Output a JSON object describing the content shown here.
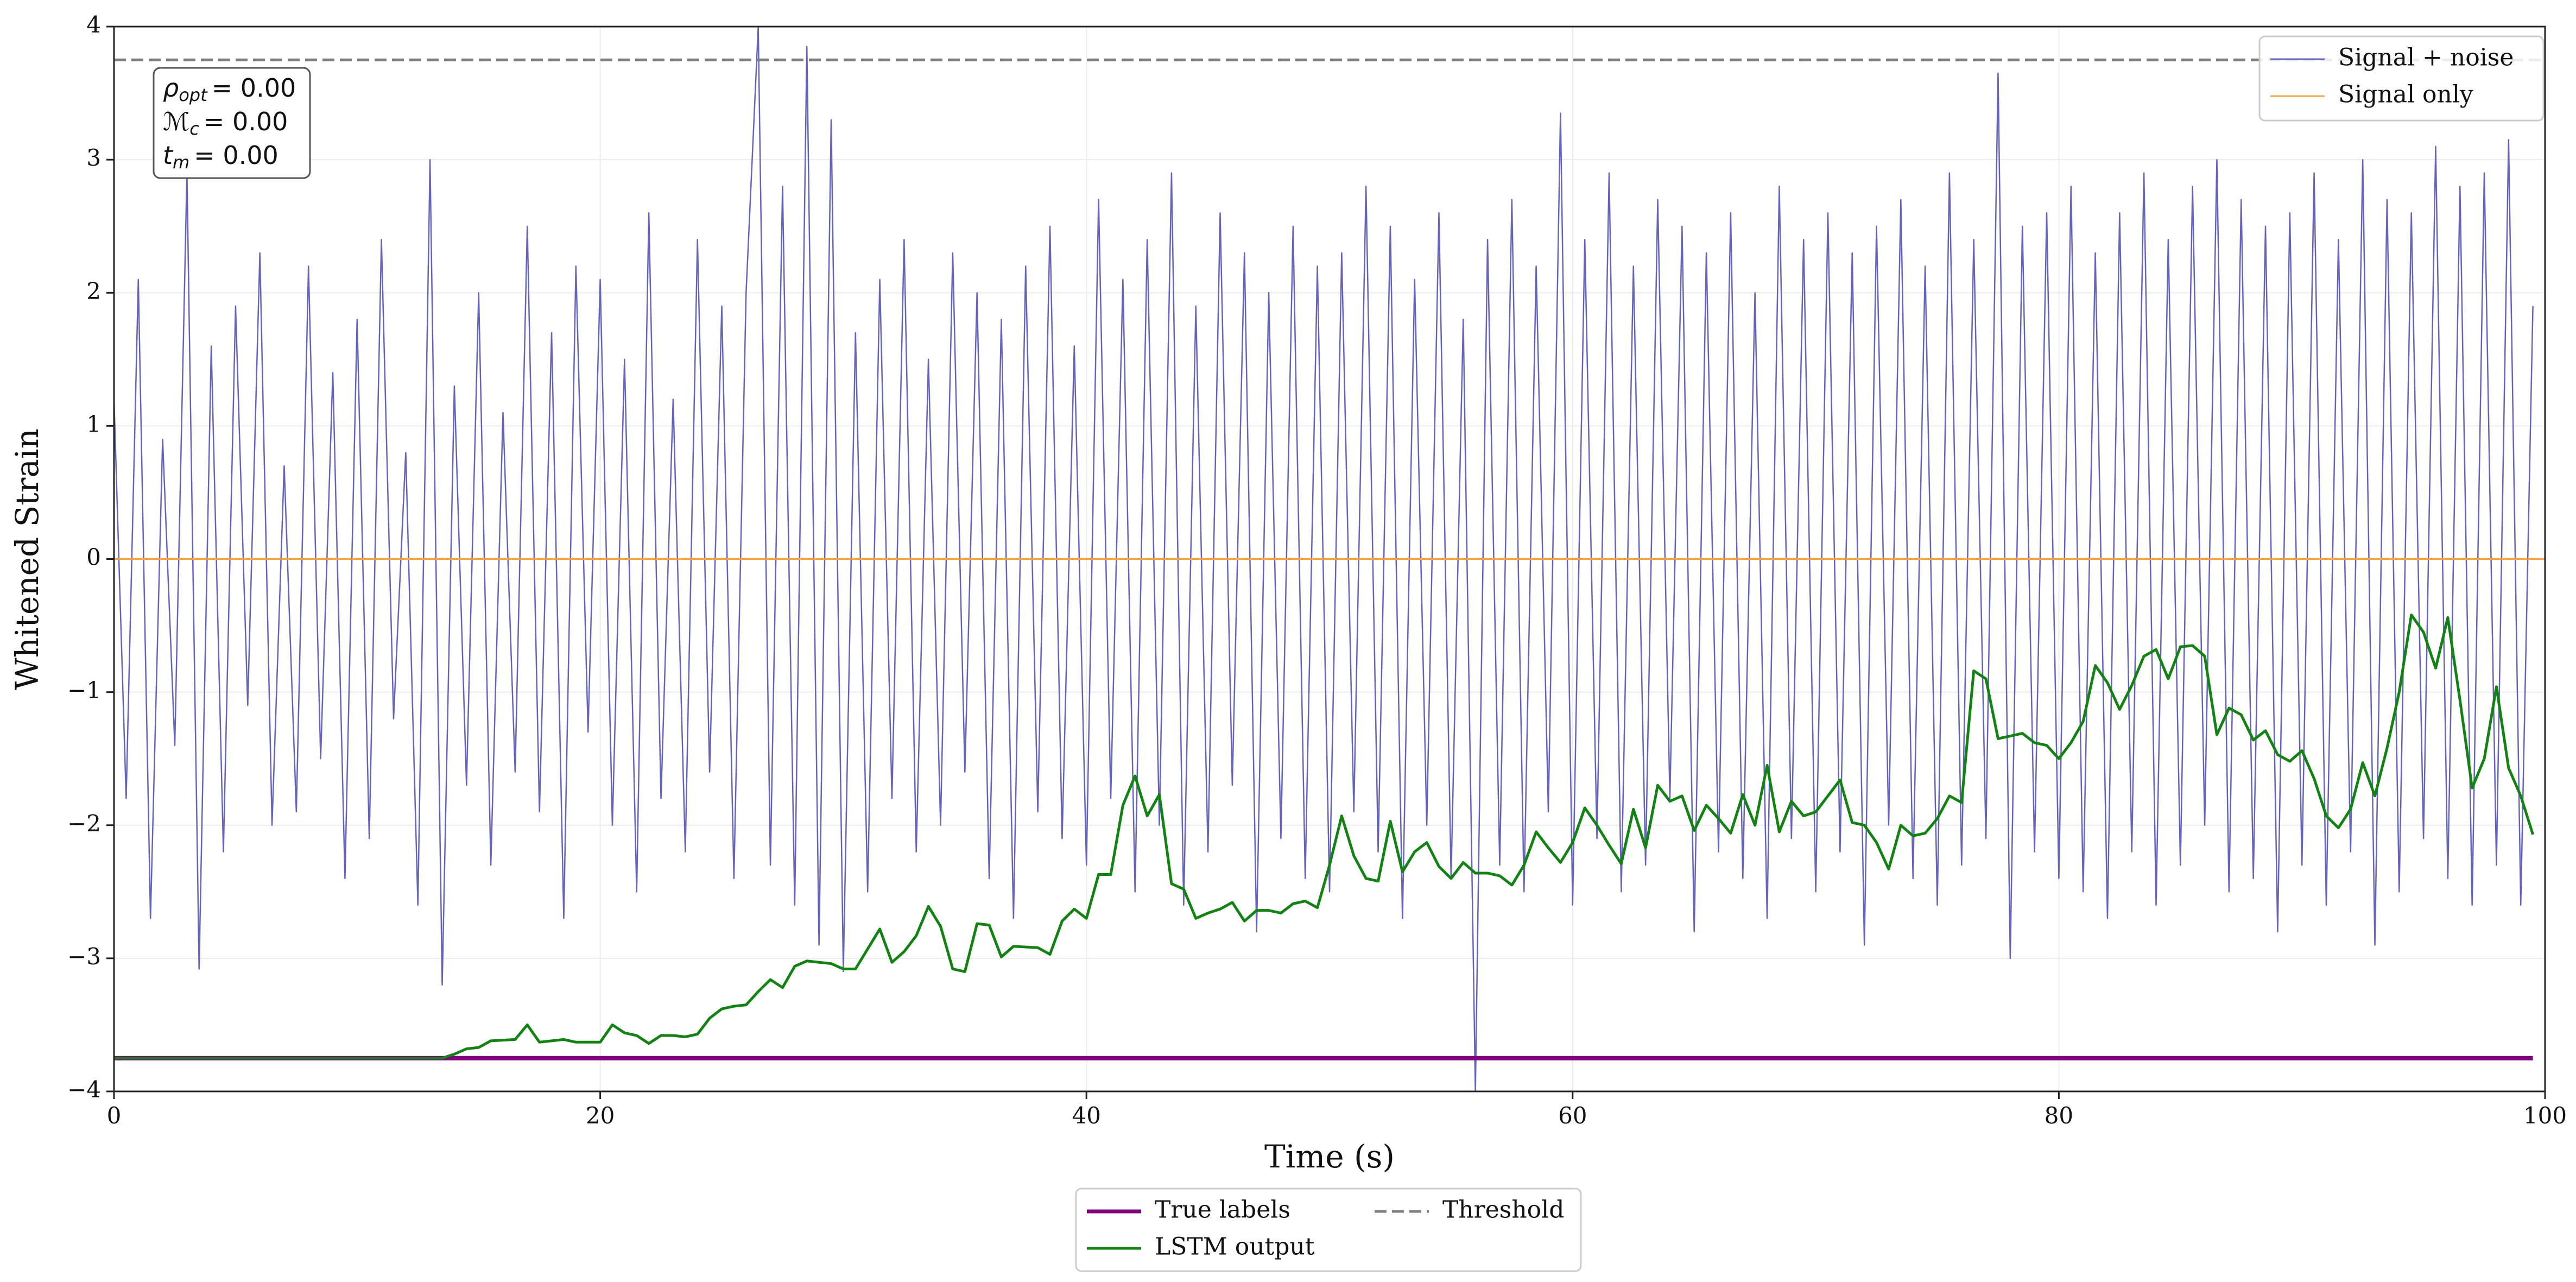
{
  "chart_data": {
    "type": "line",
    "xlabel": "Time (s)",
    "ylabel": "Whitened Strain",
    "xlim": [
      0,
      100
    ],
    "ylim": [
      -4,
      4
    ],
    "xticks": [
      0,
      20,
      40,
      60,
      80,
      100
    ],
    "yticks": [
      {
        "value": -4,
        "label": "−4"
      },
      {
        "value": -3,
        "label": "−3"
      },
      {
        "value": -2,
        "label": "−2"
      },
      {
        "value": -1,
        "label": "−1"
      },
      0,
      1,
      2,
      3,
      4
    ],
    "grid": true,
    "annotation": [
      {
        "base": "ρ",
        "sub": "opt",
        "rest": "= 0.00"
      },
      {
        "base": "ℳ",
        "sub": "c",
        "rest": "= 0.00"
      },
      {
        "base": "t",
        "sub": "m",
        "rest": "= 0.00"
      }
    ],
    "legends": [
      {
        "loc": "upper right",
        "entries": [
          0,
          1
        ]
      },
      {
        "loc": "lower center",
        "ncol": 2,
        "entries": [
          2,
          3,
          4
        ]
      }
    ],
    "series": [
      {
        "name": "Signal + noise",
        "color": "#6464bd",
        "linewidth": 2.5,
        "linestyle": "solid",
        "x": [
          0,
          0.5,
          1,
          1.5,
          2,
          2.5,
          3,
          3.5,
          4,
          4.5,
          5,
          5.5,
          6,
          6.5,
          7,
          7.5,
          8,
          8.5,
          9,
          9.5,
          10,
          10.5,
          11,
          11.5,
          12,
          12.5,
          13,
          13.5,
          14,
          14.5,
          15,
          15.5,
          16,
          16.5,
          17,
          17.5,
          18,
          18.5,
          19,
          19.5,
          20,
          20.5,
          21,
          21.5,
          22,
          22.5,
          23,
          23.5,
          24,
          24.5,
          25,
          25.5,
          26,
          26.5,
          27,
          27.5,
          28,
          28.5,
          29,
          29.5,
          30,
          30.5,
          31,
          31.5,
          32,
          32.5,
          33,
          33.5,
          34,
          34.5,
          35,
          35.5,
          36,
          36.5,
          37,
          37.5,
          38,
          38.5,
          39,
          39.5,
          40,
          40.5,
          41,
          41.5,
          42,
          42.5,
          43,
          43.5,
          44,
          44.5,
          45,
          45.5,
          46,
          46.5,
          47,
          47.5,
          48,
          48.5,
          49,
          49.5,
          50,
          50.5,
          51,
          51.5,
          52,
          52.5,
          53,
          53.5,
          54,
          54.5,
          55,
          55.5,
          56,
          56.5,
          57,
          57.5,
          58,
          58.5,
          59,
          59.5,
          60,
          60.5,
          61,
          61.5,
          62,
          62.5,
          63,
          63.5,
          64,
          64.5,
          65,
          65.5,
          66,
          66.5,
          67,
          67.5,
          68,
          68.5,
          69,
          69.5,
          70,
          70.5,
          71,
          71.5,
          72,
          72.5,
          73,
          73.5,
          74,
          74.5,
          75,
          75.5,
          76,
          76.5,
          77,
          77.5,
          78,
          78.5,
          79,
          79.5,
          80,
          80.5,
          81,
          81.5,
          82,
          82.5,
          83,
          83.5,
          84,
          84.5,
          85,
          85.5,
          86,
          86.5,
          87,
          87.5,
          88,
          88.5,
          89,
          89.5,
          90,
          90.5,
          91,
          91.5,
          92,
          92.5,
          93,
          93.5,
          94,
          94.5,
          95,
          95.5,
          96,
          96.5,
          97,
          97.5,
          98,
          98.5,
          99,
          99.5
        ],
        "values": [
          1.2,
          -1.8,
          2.1,
          -2.7,
          0.9,
          -1.4,
          2.9,
          -3.08,
          1.6,
          -2.2,
          1.9,
          -1.1,
          2.3,
          -2.0,
          0.7,
          -1.9,
          2.2,
          -1.5,
          1.4,
          -2.4,
          1.8,
          -2.1,
          2.4,
          -1.2,
          0.8,
          -2.6,
          3.0,
          -3.2,
          1.3,
          -1.7,
          2.0,
          -2.3,
          1.1,
          -1.6,
          2.5,
          -1.9,
          1.7,
          -2.7,
          2.2,
          -1.3,
          2.1,
          -2.0,
          1.5,
          -2.5,
          2.6,
          -1.8,
          1.2,
          -2.2,
          2.4,
          -1.6,
          1.9,
          -2.4,
          2.0,
          4.0,
          -2.3,
          2.8,
          -2.6,
          3.85,
          -2.9,
          3.3,
          -3.1,
          1.7,
          -2.5,
          2.1,
          -1.8,
          2.4,
          -2.2,
          1.5,
          -2.0,
          2.3,
          -1.6,
          2.0,
          -2.4,
          1.8,
          -2.7,
          2.2,
          -1.9,
          2.5,
          -2.1,
          1.6,
          -2.3,
          2.7,
          -1.8,
          2.1,
          -2.5,
          2.4,
          -2.0,
          2.9,
          -2.6,
          1.9,
          -2.2,
          2.6,
          -1.7,
          2.3,
          -2.8,
          2.0,
          -2.1,
          2.5,
          -2.4,
          2.2,
          -2.5,
          2.3,
          -1.9,
          2.8,
          -2.2,
          2.5,
          -2.7,
          2.1,
          -2.0,
          2.6,
          -2.4,
          1.8,
          -4.0,
          2.4,
          -2.3,
          2.7,
          -2.5,
          2.2,
          -1.9,
          3.35,
          -2.6,
          2.4,
          -2.1,
          2.9,
          -2.5,
          2.2,
          -2.3,
          2.7,
          -1.8,
          2.5,
          -2.8,
          2.3,
          -2.2,
          2.6,
          -2.4,
          2.0,
          -2.7,
          2.8,
          -2.1,
          2.4,
          -2.5,
          2.6,
          -2.2,
          2.3,
          -2.9,
          2.5,
          -2.0,
          2.7,
          -2.4,
          2.2,
          -2.6,
          2.9,
          -2.3,
          2.4,
          -2.1,
          3.65,
          -3.0,
          2.5,
          -2.2,
          2.6,
          -2.4,
          2.8,
          -2.5,
          2.3,
          -2.7,
          2.6,
          -2.2,
          2.9,
          -2.6,
          2.4,
          -2.3,
          2.8,
          -2.0,
          3.0,
          -2.5,
          2.7,
          -2.4,
          2.5,
          -2.8,
          2.6,
          -2.3,
          2.9,
          -2.6,
          2.4,
          -2.2,
          3.0,
          -2.9,
          2.7,
          -2.5,
          2.6,
          -2.1,
          3.1,
          -2.4,
          2.8,
          -2.6,
          2.9,
          -2.3,
          3.15,
          -2.6,
          1.9
        ]
      },
      {
        "name": "Signal only",
        "color": "#f5a347",
        "linewidth": 3,
        "linestyle": "solid",
        "x": [
          0,
          100
        ],
        "values": [
          0,
          0
        ]
      },
      {
        "name": "True labels",
        "color": "#800080",
        "linewidth": 8,
        "linestyle": "solid",
        "x": [
          0,
          99.5
        ],
        "values": [
          -3.75,
          -3.75
        ]
      },
      {
        "name": "LSTM output",
        "color": "#128212",
        "linewidth": 5,
        "linestyle": "solid",
        "x": [
          0,
          13.5,
          14,
          14.5,
          15,
          15.5,
          16.5,
          17,
          17.5,
          18,
          18.5,
          19,
          20,
          20.5,
          21,
          21.5,
          22,
          22.5,
          23,
          23.5,
          24,
          24.5,
          25,
          25.5,
          26,
          26.5,
          27,
          27.5,
          28,
          28.5,
          29,
          29.5,
          30,
          30.5,
          31,
          31.5,
          32,
          32.5,
          33,
          33.5,
          34,
          34.5,
          35,
          35.5,
          36,
          36.5,
          37,
          38,
          38.5,
          39,
          39.5,
          40,
          40.5,
          41,
          41.5,
          42,
          42.5,
          43,
          43.5,
          44,
          44.5,
          45,
          45.5,
          46,
          46.5,
          47,
          47.5,
          48,
          48.5,
          49,
          49.5,
          50,
          50.5,
          51,
          51.5,
          52,
          52.5,
          53,
          53.5,
          54,
          54.5,
          55,
          55.5,
          56,
          56.5,
          57,
          57.5,
          58,
          58.5,
          59,
          59.5,
          60,
          60.5,
          61,
          61.5,
          62,
          62.5,
          63,
          63.5,
          64,
          64.5,
          65,
          65.5,
          66,
          66.5,
          67,
          67.5,
          68,
          68.5,
          69,
          69.5,
          70,
          70.5,
          71,
          71.5,
          72,
          72.5,
          73,
          73.5,
          74,
          74.5,
          75,
          75.5,
          76,
          76.5,
          77,
          77.5,
          78,
          78.5,
          79,
          79.5,
          80,
          80.5,
          81,
          81.5,
          82,
          82.5,
          83,
          83.5,
          84,
          84.5,
          85,
          85.5,
          86,
          86.5,
          87,
          87.5,
          88,
          88.5,
          89,
          89.5,
          90,
          90.5,
          91,
          91.5,
          92,
          92.5,
          93,
          93.5,
          94,
          94.5,
          95,
          95.5,
          96,
          96.5,
          97,
          97.5,
          98,
          98.5,
          99,
          99.5
        ],
        "values": [
          -3.75,
          -3.75,
          -3.72,
          -3.68,
          -3.67,
          -3.62,
          -3.61,
          -3.5,
          -3.63,
          -3.62,
          -3.61,
          -3.63,
          -3.63,
          -3.5,
          -3.56,
          -3.58,
          -3.64,
          -3.58,
          -3.58,
          -3.59,
          -3.57,
          -3.45,
          -3.38,
          -3.36,
          -3.35,
          -3.25,
          -3.16,
          -3.22,
          -3.06,
          -3.02,
          -3.03,
          -3.04,
          -3.08,
          -3.08,
          -2.93,
          -2.78,
          -3.03,
          -2.95,
          -2.83,
          -2.61,
          -2.76,
          -3.08,
          -3.1,
          -2.74,
          -2.75,
          -2.99,
          -2.91,
          -2.92,
          -2.97,
          -2.72,
          -2.63,
          -2.7,
          -2.37,
          -2.37,
          -1.85,
          -1.63,
          -1.93,
          -1.77,
          -2.44,
          -2.48,
          -2.7,
          -2.66,
          -2.63,
          -2.58,
          -2.72,
          -2.64,
          -2.64,
          -2.66,
          -2.59,
          -2.57,
          -2.62,
          -2.3,
          -1.93,
          -2.23,
          -2.4,
          -2.42,
          -1.97,
          -2.35,
          -2.2,
          -2.13,
          -2.31,
          -2.4,
          -2.28,
          -2.36,
          -2.36,
          -2.38,
          -2.45,
          -2.3,
          -2.05,
          -2.17,
          -2.28,
          -2.13,
          -1.87,
          -2.0,
          -2.15,
          -2.29,
          -1.88,
          -2.17,
          -1.7,
          -1.82,
          -1.78,
          -2.04,
          -1.85,
          -1.95,
          -2.06,
          -1.77,
          -2.0,
          -1.55,
          -2.05,
          -1.82,
          -1.93,
          -1.9,
          -1.78,
          -1.66,
          -1.98,
          -2.0,
          -2.13,
          -2.33,
          -2.0,
          -2.08,
          -2.06,
          -1.95,
          -1.78,
          -1.83,
          -0.84,
          -0.9,
          -1.35,
          -1.33,
          -1.31,
          -1.38,
          -1.4,
          -1.5,
          -1.38,
          -1.22,
          -0.8,
          -0.93,
          -1.13,
          -0.95,
          -0.73,
          -0.68,
          -0.9,
          -0.66,
          -0.65,
          -0.73,
          -1.32,
          -1.12,
          -1.17,
          -1.36,
          -1.29,
          -1.47,
          -1.52,
          -1.44,
          -1.65,
          -1.93,
          -2.02,
          -1.88,
          -1.53,
          -1.78,
          -1.42,
          -1.0,
          -0.42,
          -0.55,
          -0.82,
          -0.44,
          -1.06,
          -1.72,
          -1.5,
          -0.96,
          -1.57,
          -1.78,
          -2.07
        ]
      },
      {
        "name": "Threshold",
        "color": "#808080",
        "linewidth": 5,
        "linestyle": "dashed",
        "x": [
          0,
          100
        ],
        "values": [
          3.75,
          3.75
        ]
      }
    ]
  }
}
